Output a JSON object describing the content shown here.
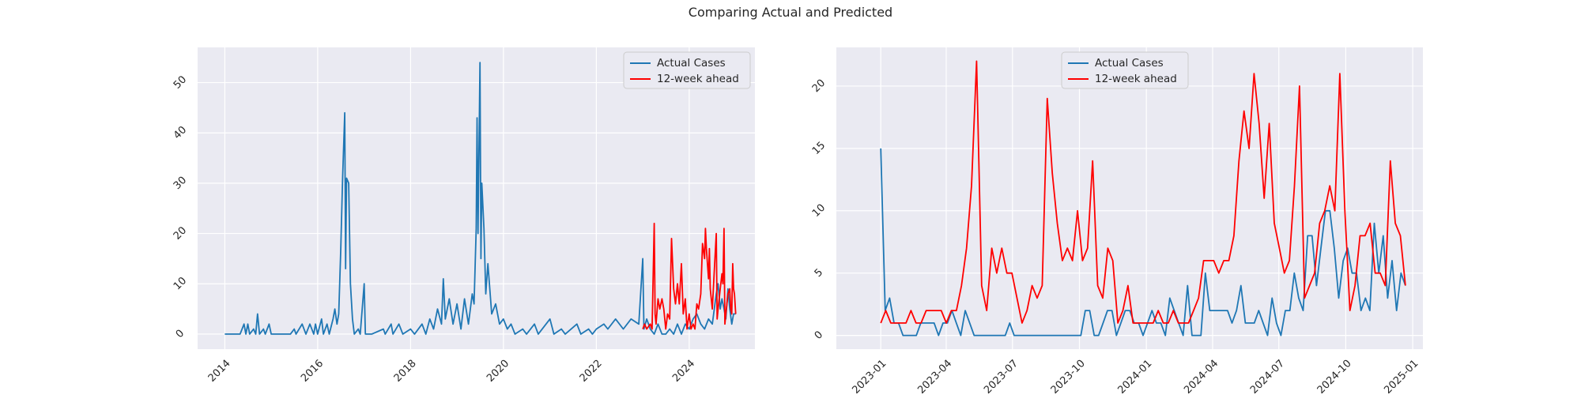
{
  "figure": {
    "title": "Comparing Actual and Predicted"
  },
  "chart_data": [
    {
      "type": "line",
      "title": "",
      "xlabel": "",
      "ylabel": "",
      "x_axis": "date",
      "xlim": [
        "2013-06-01",
        "2025-06-01"
      ],
      "ylim": [
        -3,
        57
      ],
      "x_ticks": [
        "2014",
        "2016",
        "2018",
        "2020",
        "2022",
        "2024"
      ],
      "y_ticks": [
        "0",
        "10",
        "20",
        "30",
        "40",
        "50"
      ],
      "grid": true,
      "legend": "top-right",
      "series": [
        {
          "name": "Actual Cases",
          "color": "#1f77b4",
          "points": [
            [
              "2014-01-01",
              0
            ],
            [
              "2014-03-01",
              0
            ],
            [
              "2014-05-01",
              0
            ],
            [
              "2014-06-01",
              2
            ],
            [
              "2014-06-15",
              0
            ],
            [
              "2014-07-01",
              2
            ],
            [
              "2014-07-15",
              0
            ],
            [
              "2014-08-15",
              1
            ],
            [
              "2014-09-01",
              0
            ],
            [
              "2014-09-15",
              4
            ],
            [
              "2014-10-01",
              0
            ],
            [
              "2014-11-01",
              1
            ],
            [
              "2014-11-15",
              0
            ],
            [
              "2014-12-15",
              2
            ],
            [
              "2015-01-01",
              0
            ],
            [
              "2015-06-01",
              0
            ],
            [
              "2015-07-01",
              1
            ],
            [
              "2015-07-15",
              0
            ],
            [
              "2015-09-01",
              2
            ],
            [
              "2015-10-01",
              0
            ],
            [
              "2015-11-01",
              2
            ],
            [
              "2015-12-01",
              0
            ],
            [
              "2015-12-15",
              2
            ],
            [
              "2016-01-01",
              0
            ],
            [
              "2016-02-01",
              3
            ],
            [
              "2016-02-15",
              0
            ],
            [
              "2016-03-15",
              2
            ],
            [
              "2016-04-01",
              0
            ],
            [
              "2016-05-01",
              3
            ],
            [
              "2016-05-15",
              5
            ],
            [
              "2016-06-01",
              2
            ],
            [
              "2016-06-15",
              4
            ],
            [
              "2016-07-01",
              17
            ],
            [
              "2016-07-15",
              31
            ],
            [
              "2016-08-01",
              44
            ],
            [
              "2016-08-08",
              13
            ],
            [
              "2016-08-15",
              31
            ],
            [
              "2016-09-01",
              30
            ],
            [
              "2016-09-15",
              10
            ],
            [
              "2016-10-01",
              3
            ],
            [
              "2016-10-15",
              0
            ],
            [
              "2016-11-15",
              1
            ],
            [
              "2016-12-01",
              0
            ],
            [
              "2017-01-01",
              10
            ],
            [
              "2017-01-10",
              0
            ],
            [
              "2017-03-01",
              0
            ],
            [
              "2017-06-01",
              1
            ],
            [
              "2017-06-15",
              0
            ],
            [
              "2017-08-01",
              2
            ],
            [
              "2017-08-15",
              0
            ],
            [
              "2017-10-01",
              2
            ],
            [
              "2017-11-01",
              0
            ],
            [
              "2018-01-01",
              1
            ],
            [
              "2018-02-01",
              0
            ],
            [
              "2018-04-01",
              2
            ],
            [
              "2018-05-01",
              0
            ],
            [
              "2018-06-01",
              3
            ],
            [
              "2018-07-01",
              1
            ],
            [
              "2018-08-01",
              5
            ],
            [
              "2018-09-01",
              2
            ],
            [
              "2018-09-15",
              11
            ],
            [
              "2018-10-01",
              3
            ],
            [
              "2018-11-01",
              7
            ],
            [
              "2018-12-01",
              2
            ],
            [
              "2019-01-01",
              6
            ],
            [
              "2019-02-01",
              1
            ],
            [
              "2019-03-01",
              7
            ],
            [
              "2019-04-01",
              2
            ],
            [
              "2019-05-01",
              8
            ],
            [
              "2019-05-15",
              6
            ],
            [
              "2019-06-01",
              21
            ],
            [
              "2019-06-08",
              43
            ],
            [
              "2019-06-15",
              20
            ],
            [
              "2019-07-01",
              54
            ],
            [
              "2019-07-08",
              15
            ],
            [
              "2019-07-15",
              30
            ],
            [
              "2019-08-01",
              21
            ],
            [
              "2019-08-15",
              8
            ],
            [
              "2019-09-01",
              14
            ],
            [
              "2019-10-01",
              4
            ],
            [
              "2019-11-01",
              6
            ],
            [
              "2019-12-01",
              2
            ],
            [
              "2020-01-01",
              3
            ],
            [
              "2020-02-01",
              1
            ],
            [
              "2020-03-01",
              2
            ],
            [
              "2020-04-01",
              0
            ],
            [
              "2020-06-01",
              1
            ],
            [
              "2020-07-01",
              0
            ],
            [
              "2020-09-01",
              2
            ],
            [
              "2020-10-01",
              0
            ],
            [
              "2021-01-01",
              3
            ],
            [
              "2021-02-01",
              0
            ],
            [
              "2021-04-01",
              1
            ],
            [
              "2021-05-01",
              0
            ],
            [
              "2021-08-01",
              2
            ],
            [
              "2021-09-01",
              0
            ],
            [
              "2021-11-01",
              1
            ],
            [
              "2021-12-01",
              0
            ],
            [
              "2022-01-01",
              1
            ],
            [
              "2022-03-01",
              2
            ],
            [
              "2022-04-01",
              1
            ],
            [
              "2022-06-01",
              3
            ],
            [
              "2022-08-01",
              1
            ],
            [
              "2022-10-01",
              3
            ],
            [
              "2022-12-01",
              2
            ],
            [
              "2023-01-01",
              15
            ],
            [
              "2023-01-10",
              1
            ],
            [
              "2023-02-01",
              3
            ],
            [
              "2023-03-01",
              1
            ],
            [
              "2023-04-01",
              0
            ],
            [
              "2023-05-01",
              2
            ],
            [
              "2023-06-01",
              0
            ],
            [
              "2023-07-01",
              0
            ],
            [
              "2023-08-01",
              1
            ],
            [
              "2023-09-01",
              0
            ],
            [
              "2023-10-01",
              2
            ],
            [
              "2023-11-01",
              0
            ],
            [
              "2023-12-01",
              2
            ],
            [
              "2024-01-01",
              1
            ],
            [
              "2024-02-01",
              3
            ],
            [
              "2024-03-01",
              4
            ],
            [
              "2024-04-01",
              2
            ],
            [
              "2024-05-01",
              1
            ],
            [
              "2024-06-01",
              3
            ],
            [
              "2024-07-01",
              2
            ],
            [
              "2024-08-01",
              8
            ],
            [
              "2024-08-15",
              10
            ],
            [
              "2024-09-01",
              5
            ],
            [
              "2024-09-15",
              7
            ],
            [
              "2024-10-01",
              5
            ],
            [
              "2024-10-15",
              3
            ],
            [
              "2024-11-01",
              9
            ],
            [
              "2024-11-15",
              5
            ],
            [
              "2024-12-01",
              2
            ],
            [
              "2024-12-15",
              4
            ],
            [
              "2025-01-01",
              4
            ]
          ]
        },
        {
          "name": "12-week ahead",
          "color": "#ff0000",
          "points": [
            [
              "2023-01-01",
              1
            ],
            [
              "2023-01-15",
              2
            ],
            [
              "2023-02-01",
              1
            ],
            [
              "2023-03-01",
              2
            ],
            [
              "2023-03-15",
              1
            ],
            [
              "2023-04-01",
              22
            ],
            [
              "2023-04-08",
              4
            ],
            [
              "2023-04-15",
              2
            ],
            [
              "2023-05-01",
              7
            ],
            [
              "2023-05-15",
              5
            ],
            [
              "2023-06-01",
              7
            ],
            [
              "2023-06-15",
              5
            ],
            [
              "2023-07-01",
              1
            ],
            [
              "2023-07-15",
              4
            ],
            [
              "2023-08-01",
              3
            ],
            [
              "2023-08-15",
              19
            ],
            [
              "2023-09-01",
              9
            ],
            [
              "2023-09-15",
              6
            ],
            [
              "2023-10-01",
              10
            ],
            [
              "2023-10-15",
              6
            ],
            [
              "2023-11-01",
              14
            ],
            [
              "2023-11-15",
              4
            ],
            [
              "2023-12-01",
              7
            ],
            [
              "2023-12-15",
              1
            ],
            [
              "2024-01-01",
              4
            ],
            [
              "2024-01-15",
              1
            ],
            [
              "2024-02-01",
              2
            ],
            [
              "2024-02-15",
              1
            ],
            [
              "2024-03-01",
              6
            ],
            [
              "2024-03-15",
              5
            ],
            [
              "2024-04-01",
              8
            ],
            [
              "2024-04-15",
              18
            ],
            [
              "2024-05-01",
              15
            ],
            [
              "2024-05-08",
              21
            ],
            [
              "2024-05-15",
              17
            ],
            [
              "2024-06-01",
              11
            ],
            [
              "2024-06-08",
              17
            ],
            [
              "2024-06-15",
              9
            ],
            [
              "2024-07-01",
              5
            ],
            [
              "2024-07-15",
              12
            ],
            [
              "2024-08-01",
              20
            ],
            [
              "2024-08-08",
              3
            ],
            [
              "2024-08-15",
              5
            ],
            [
              "2024-09-01",
              9
            ],
            [
              "2024-09-15",
              12
            ],
            [
              "2024-09-22",
              10
            ],
            [
              "2024-10-01",
              21
            ],
            [
              "2024-10-08",
              2
            ],
            [
              "2024-10-15",
              4
            ],
            [
              "2024-11-01",
              8
            ],
            [
              "2024-11-15",
              9
            ],
            [
              "2024-11-22",
              5
            ],
            [
              "2024-12-01",
              4
            ],
            [
              "2024-12-08",
              14
            ],
            [
              "2024-12-15",
              9
            ],
            [
              "2024-12-22",
              8
            ],
            [
              "2025-01-01",
              4
            ]
          ]
        }
      ]
    },
    {
      "type": "line",
      "title": "",
      "xlabel": "",
      "ylabel": "",
      "x_axis": "date",
      "xlim": [
        "2022-11-01",
        "2025-01-15"
      ],
      "ylim": [
        -1.1,
        23.1
      ],
      "x_ticks": [
        "2023-01",
        "2023-04",
        "2023-07",
        "2023-10",
        "2024-01",
        "2024-04",
        "2024-07",
        "2024-10",
        "2025-01"
      ],
      "y_ticks": [
        "0",
        "5",
        "10",
        "15",
        "20"
      ],
      "grid": true,
      "legend": "top-center",
      "series": [
        {
          "name": "Actual Cases",
          "color": "#1f77b4",
          "values": [
            15,
            2,
            3,
            1,
            1,
            0,
            0,
            0,
            0,
            1,
            1,
            1,
            1,
            0,
            1,
            1,
            2,
            1,
            0,
            2,
            1,
            0,
            0,
            0,
            0,
            0,
            0,
            0,
            0,
            1,
            0,
            0,
            0,
            0,
            0,
            0,
            0,
            0,
            0,
            0,
            0,
            0,
            0,
            0,
            0,
            0,
            2,
            2,
            0,
            0,
            1,
            2,
            2,
            0,
            1,
            2,
            2,
            1,
            1,
            0,
            1,
            2,
            1,
            1,
            0,
            3,
            2,
            1,
            0,
            4,
            0,
            0,
            0,
            5,
            2,
            2,
            2,
            2,
            2,
            1,
            2,
            4,
            1,
            1,
            1,
            2,
            1,
            0,
            3,
            1,
            0,
            2,
            2,
            5,
            3,
            2,
            8,
            8,
            4,
            7,
            10,
            10,
            7,
            3,
            6,
            7,
            5,
            5,
            2,
            3,
            2,
            9,
            5,
            8,
            3,
            6,
            2,
            5,
            4
          ]
        },
        {
          "name": "12-week ahead",
          "color": "#ff0000",
          "values": [
            1,
            2,
            1,
            1,
            1,
            1,
            2,
            1,
            1,
            2,
            2,
            2,
            2,
            1,
            2,
            2,
            4,
            7,
            12,
            22,
            4,
            2,
            7,
            5,
            7,
            5,
            5,
            3,
            1,
            2,
            4,
            3,
            4,
            19,
            13,
            9,
            6,
            7,
            6,
            10,
            6,
            7,
            14,
            4,
            3,
            7,
            6,
            1,
            2,
            4,
            1,
            1,
            1,
            1,
            1,
            2,
            1,
            1,
            2,
            1,
            1,
            1,
            2,
            3,
            6,
            6,
            6,
            5,
            6,
            6,
            8,
            14,
            18,
            15,
            21,
            17,
            11,
            17,
            9,
            7,
            5,
            6,
            12,
            20,
            3,
            4,
            5,
            9,
            10,
            12,
            10,
            21,
            10,
            2,
            4,
            8,
            8,
            9,
            5,
            5,
            4,
            14,
            9,
            8,
            4
          ]
        }
      ]
    }
  ]
}
